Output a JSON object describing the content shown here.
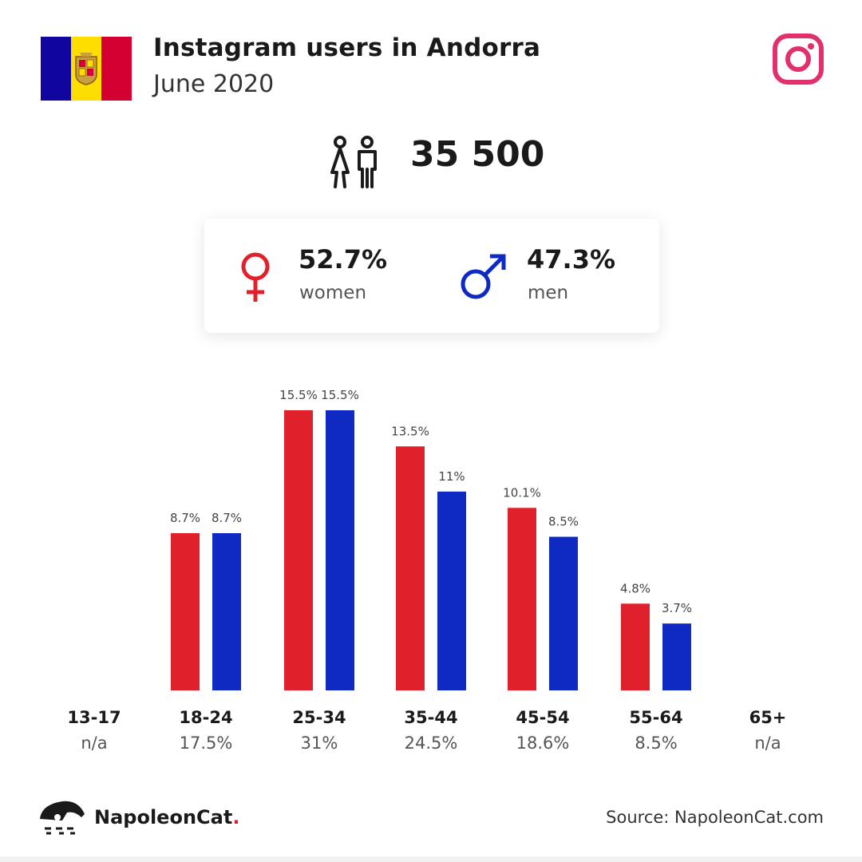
{
  "header": {
    "title": "Instagram users in Andorra",
    "subtitle": "June 2020",
    "flag_icon": "andorra-flag",
    "platform_icon": "instagram-icon"
  },
  "total": {
    "icon": "users-icon",
    "value": "35 500"
  },
  "gender": {
    "women_pct": "52.7%",
    "women_label": "women",
    "men_pct": "47.3%",
    "men_label": "men"
  },
  "colors": {
    "women": "#e0202b",
    "men": "#0f2ac2",
    "instagram": "#e1306c",
    "flag_blue": "#10069f",
    "flag_yellow": "#fedd00",
    "flag_red": "#d50032"
  },
  "chart_data": {
    "type": "bar",
    "categories": [
      "13-17",
      "18-24",
      "25-34",
      "35-44",
      "45-54",
      "55-64",
      "65+"
    ],
    "category_shares": [
      "n/a",
      "17.5%",
      "31%",
      "24.5%",
      "18.6%",
      "8.5%",
      "n/a"
    ],
    "series": [
      {
        "name": "women",
        "values": [
          null,
          8.7,
          15.5,
          13.5,
          10.1,
          4.8,
          null
        ],
        "labels": [
          "",
          "8.7%",
          "15.5%",
          "13.5%",
          "10.1%",
          "4.8%",
          ""
        ]
      },
      {
        "name": "men",
        "values": [
          null,
          8.7,
          15.5,
          11,
          8.5,
          3.7,
          null
        ],
        "labels": [
          "",
          "8.7%",
          "15.5%",
          "11%",
          "8.5%",
          "3.7%",
          ""
        ]
      }
    ],
    "ylim": [
      0,
      15.5
    ]
  },
  "footer": {
    "brand_name": "NapoleonCat",
    "brand_dot": ".",
    "source": "Source: NapoleonCat.com"
  }
}
